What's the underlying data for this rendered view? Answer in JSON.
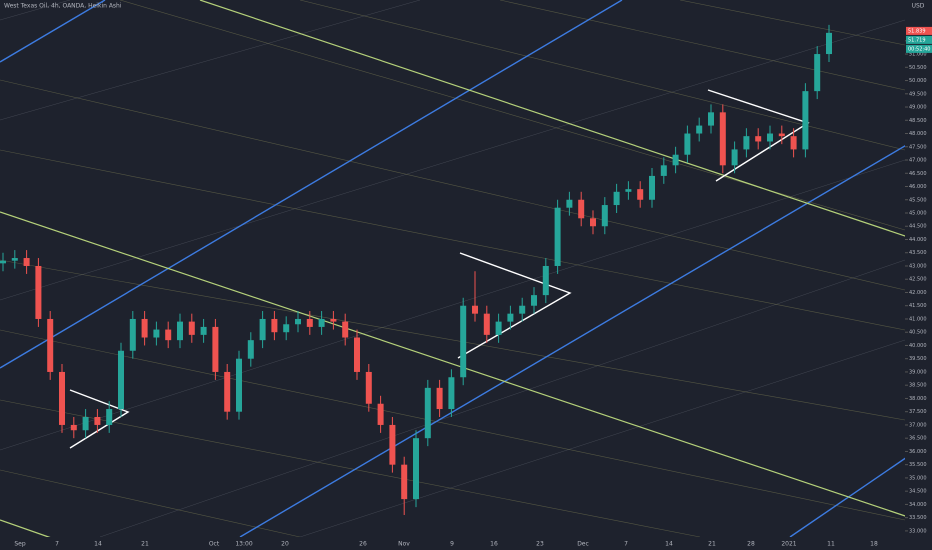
{
  "chart_data": {
    "type": "candlestick",
    "title": "West Texas Oil, 4h, OANDA, Heikin Ashi",
    "currency": "USD",
    "price_labels": [
      "51.839",
      "51.719",
      "00:52:40"
    ],
    "up_color": "#26a69a",
    "down_color": "#ef5350",
    "open": [
      43.1,
      43.2,
      43.3,
      43.0,
      41.0,
      39.0,
      37.0,
      36.8,
      37.3,
      37.0,
      37.6,
      39.8,
      41.0,
      40.3,
      40.6,
      40.2,
      40.9,
      40.4,
      40.7,
      39.0,
      37.5,
      39.5,
      40.2,
      41.0,
      40.5,
      40.8,
      41.0,
      40.7,
      41.0,
      40.9,
      40.3,
      39.0,
      37.8,
      37.0,
      35.5,
      34.2,
      36.5,
      38.4,
      37.6,
      38.8,
      41.5,
      41.2,
      40.4,
      40.9,
      41.2,
      41.5,
      41.9,
      43.0,
      45.2,
      45.5,
      44.8,
      44.5,
      45.3,
      45.8,
      45.9,
      45.5,
      46.4,
      46.8,
      47.2,
      48.0,
      48.3,
      48.8,
      46.8,
      47.4,
      47.9,
      47.7,
      48.0,
      47.9,
      47.4,
      49.6,
      51.0
    ],
    "high": [
      43.5,
      43.6,
      43.6,
      43.3,
      41.3,
      39.3,
      37.3,
      37.6,
      37.6,
      37.9,
      40.1,
      41.3,
      41.3,
      40.9,
      40.9,
      41.2,
      41.2,
      41.0,
      41.0,
      39.3,
      39.8,
      40.5,
      41.3,
      41.3,
      41.1,
      41.3,
      41.3,
      41.3,
      41.3,
      41.2,
      40.6,
      39.3,
      38.1,
      37.3,
      35.8,
      36.8,
      38.7,
      38.7,
      39.1,
      41.8,
      42.8,
      41.5,
      41.2,
      41.5,
      41.8,
      42.2,
      43.3,
      45.5,
      45.8,
      45.8,
      45.1,
      45.6,
      46.1,
      46.2,
      46.2,
      46.7,
      47.1,
      47.5,
      48.3,
      48.6,
      49.1,
      49.1,
      47.7,
      48.2,
      48.2,
      48.3,
      48.3,
      48.2,
      49.9,
      51.3,
      52.1
    ],
    "low": [
      42.8,
      42.9,
      42.7,
      40.7,
      38.7,
      36.7,
      36.5,
      36.5,
      36.7,
      36.7,
      37.3,
      39.5,
      40.0,
      40.0,
      39.9,
      39.9,
      40.1,
      40.1,
      38.7,
      37.2,
      37.2,
      39.2,
      39.9,
      40.2,
      40.2,
      40.5,
      40.4,
      40.4,
      40.6,
      40.0,
      38.7,
      37.5,
      36.7,
      35.2,
      33.6,
      33.9,
      36.2,
      37.3,
      37.3,
      38.5,
      40.9,
      40.1,
      40.1,
      40.6,
      40.9,
      41.2,
      41.6,
      42.7,
      44.9,
      44.5,
      44.2,
      44.2,
      45.0,
      45.5,
      45.2,
      45.2,
      46.1,
      46.5,
      46.9,
      47.7,
      48.0,
      46.5,
      46.5,
      47.1,
      47.4,
      47.4,
      47.6,
      47.1,
      47.1,
      49.3,
      50.7
    ],
    "close": [
      43.2,
      43.3,
      43.0,
      41.0,
      39.0,
      37.0,
      36.8,
      37.3,
      37.0,
      37.6,
      39.8,
      41.0,
      40.3,
      40.6,
      40.2,
      40.9,
      40.4,
      40.7,
      39.0,
      37.5,
      39.5,
      40.2,
      41.0,
      40.5,
      40.8,
      41.0,
      40.7,
      41.0,
      40.9,
      40.3,
      39.0,
      37.8,
      37.0,
      35.5,
      34.2,
      36.5,
      38.4,
      37.6,
      38.8,
      41.5,
      41.2,
      40.4,
      40.9,
      41.2,
      41.5,
      41.9,
      43.0,
      45.2,
      45.5,
      44.8,
      44.5,
      45.3,
      45.8,
      45.9,
      45.5,
      46.4,
      46.8,
      47.2,
      48.0,
      48.3,
      48.8,
      46.8,
      47.4,
      47.9,
      47.7,
      48.0,
      47.9,
      47.4,
      49.6,
      51.0,
      51.8
    ],
    "x_labels": [
      "Sep",
      "7",
      "14",
      "21",
      "Oct",
      "13:00",
      "20",
      "26",
      "Nov",
      "9",
      "16",
      "23",
      "Dec",
      "7",
      "14",
      "21",
      "28",
      "2021",
      "11",
      "18"
    ],
    "ylim": [
      32.77,
      53.04
    ],
    "yticks": [
      {
        "value": 33,
        "label": "33.000"
      },
      {
        "value": 33.5,
        "label": "33.500"
      },
      {
        "value": 34,
        "label": "34.000"
      },
      {
        "value": 34.5,
        "label": "34.500"
      },
      {
        "value": 35,
        "label": "35.000"
      },
      {
        "value": 35.5,
        "label": "35.500"
      },
      {
        "value": 36,
        "label": "36.000"
      },
      {
        "value": 36.5,
        "label": "36.500"
      },
      {
        "value": 37,
        "label": "37.000"
      },
      {
        "value": 37.5,
        "label": "37.500"
      },
      {
        "value": 38,
        "label": "38.000"
      },
      {
        "value": 38.5,
        "label": "38.500"
      },
      {
        "value": 39,
        "label": "39.000"
      },
      {
        "value": 39.5,
        "label": "39.500"
      },
      {
        "value": 40,
        "label": "40.000"
      },
      {
        "value": 40.5,
        "label": "40.500"
      },
      {
        "value": 41,
        "label": "41.000"
      },
      {
        "value": 41.5,
        "label": "41.500"
      },
      {
        "value": 42,
        "label": "42.000"
      },
      {
        "value": 42.5,
        "label": "42.500"
      },
      {
        "value": 43,
        "label": "43.000"
      },
      {
        "value": 43.5,
        "label": "43.500"
      },
      {
        "value": 44,
        "label": "44.000"
      },
      {
        "value": 44.5,
        "label": "44.500"
      },
      {
        "value": 45,
        "label": "45.000"
      },
      {
        "value": 45.5,
        "label": "45.500"
      },
      {
        "value": 46,
        "label": "46.000"
      },
      {
        "value": 46.5,
        "label": "46.500"
      },
      {
        "value": 47,
        "label": "47.000"
      },
      {
        "value": 47.5,
        "label": "47.500"
      },
      {
        "value": 48,
        "label": "48.000"
      },
      {
        "value": 48.5,
        "label": "48.500"
      },
      {
        "value": 49,
        "label": "49.000"
      },
      {
        "value": 49.5,
        "label": "49.500"
      },
      {
        "value": 50,
        "label": "50.000"
      },
      {
        "value": 50.5,
        "label": "50.500"
      },
      {
        "value": 51,
        "label": "51.000"
      },
      {
        "value": 51.5,
        "label": "51.500"
      }
    ]
  }
}
